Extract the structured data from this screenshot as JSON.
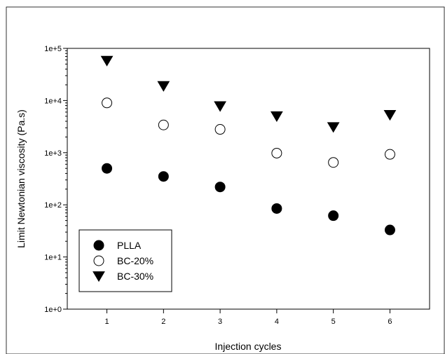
{
  "chart_data": {
    "type": "scatter",
    "xlabel": "Injection cycles",
    "ylabel": "Limit Newtonian viscosity (Pa.s)",
    "yscale": "log",
    "xlim": [
      0.3,
      6.7
    ],
    "ylim": [
      1,
      100000
    ],
    "x": [
      1,
      2,
      3,
      4,
      5,
      6
    ],
    "x_tick_labels": [
      "1",
      "2",
      "3",
      "4",
      "5",
      "6"
    ],
    "y_tick_labels": [
      "1e+0",
      "1e+1",
      "1e+2",
      "1e+3",
      "1e+4",
      "1e+5"
    ],
    "y_tick_values": [
      1,
      10,
      100,
      1000,
      10000,
      100000
    ],
    "grid": false,
    "legend_position": "bottom-left",
    "series": [
      {
        "name": "PLLA",
        "marker": "filled-circle",
        "color": "#000000",
        "values": [
          500,
          350,
          220,
          85,
          62,
          33
        ]
      },
      {
        "name": "BC-20%",
        "marker": "open-circle",
        "color": "#000000",
        "values": [
          9000,
          3400,
          2800,
          980,
          650,
          930
        ]
      },
      {
        "name": "BC-30%",
        "marker": "filled-triangle-down",
        "color": "#000000",
        "values": [
          58000,
          19000,
          7800,
          5000,
          3100,
          5300
        ]
      }
    ]
  }
}
